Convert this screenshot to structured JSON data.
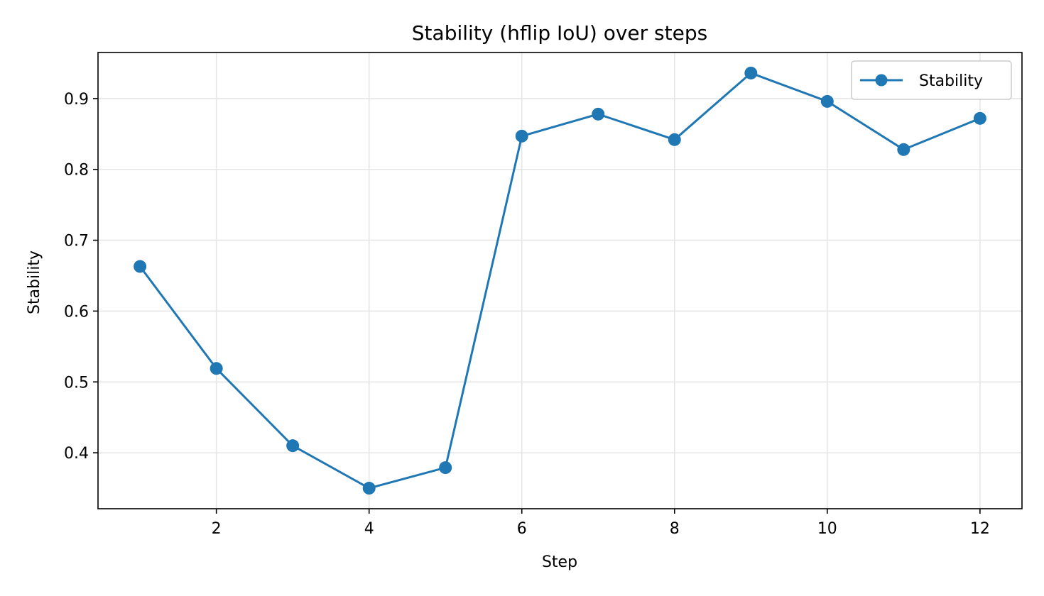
{
  "chart_data": {
    "type": "line",
    "title": "Stability (hflip IoU) over steps",
    "xlabel": "Step",
    "ylabel": "Stability",
    "xlim": [
      0.45,
      12.55
    ],
    "ylim": [
      0.321,
      0.965
    ],
    "xticks": [
      2,
      4,
      6,
      8,
      10,
      12
    ],
    "yticks": [
      0.4,
      0.5,
      0.6,
      0.7,
      0.8,
      0.9
    ],
    "grid": true,
    "legend": {
      "placement": "top-right",
      "entries": [
        "Stability"
      ]
    },
    "series": [
      {
        "name": "Stability",
        "color": "#1f77b4",
        "marker": "circle",
        "x": [
          1,
          2,
          3,
          4,
          5,
          6,
          7,
          8,
          9,
          10,
          11,
          12
        ],
        "y": [
          0.663,
          0.519,
          0.41,
          0.35,
          0.379,
          0.847,
          0.878,
          0.842,
          0.936,
          0.896,
          0.828,
          0.872
        ]
      }
    ]
  }
}
